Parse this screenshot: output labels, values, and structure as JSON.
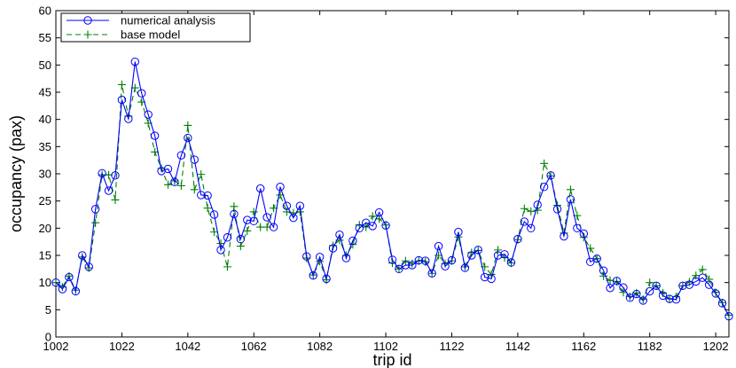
{
  "chart_data": {
    "type": "line",
    "xlabel": "trip id",
    "ylabel": "occupancy (pax)",
    "xlim": [
      1002,
      1206
    ],
    "ylim": [
      0,
      60
    ],
    "xticks": [
      1002,
      1022,
      1042,
      1062,
      1082,
      1102,
      1122,
      1142,
      1162,
      1182,
      1202
    ],
    "yticks": [
      0,
      5,
      10,
      15,
      20,
      25,
      30,
      35,
      40,
      45,
      50,
      55,
      60
    ],
    "grid": false,
    "legend_position": "top-left",
    "x_start": 1002,
    "x_step": 2,
    "series": [
      {
        "name": "numerical analysis",
        "color": "#0000ff",
        "line_style": "solid",
        "marker": "circle",
        "values": [
          10.0,
          8.8,
          11.0,
          8.4,
          15.0,
          12.9,
          23.5,
          30.1,
          26.9,
          29.7,
          43.6,
          40.1,
          50.6,
          44.8,
          40.9,
          37.0,
          30.5,
          30.9,
          28.5,
          33.4,
          36.6,
          32.6,
          26.1,
          26.0,
          22.5,
          16.0,
          18.3,
          22.6,
          18.0,
          21.5,
          21.3,
          27.3,
          22.0,
          20.2,
          27.6,
          24.1,
          21.9,
          24.1,
          14.8,
          11.3,
          14.7,
          10.7,
          16.3,
          18.8,
          14.5,
          17.7,
          20.0,
          21.0,
          20.4,
          22.9,
          20.5,
          14.2,
          12.5,
          13.2,
          13.2,
          14.1,
          14.0,
          11.7,
          16.7,
          13.0,
          14.1,
          19.3,
          12.7,
          15.0,
          16.0,
          11.0,
          10.7,
          15.0,
          15.2,
          13.7,
          18.0,
          21.2,
          20.0,
          24.3,
          27.6,
          29.7,
          23.5,
          18.5,
          25.3,
          20.0,
          19.0,
          13.8,
          14.4,
          12.2,
          9.0,
          10.3,
          9.1,
          7.2,
          7.9,
          6.7,
          8.4,
          9.4,
          7.6,
          7.0,
          6.9,
          9.4,
          9.6,
          10.2,
          10.9,
          9.6,
          8.0,
          6.2,
          3.8
        ]
      },
      {
        "name": "base model",
        "color": "#008000",
        "line_style": "dashed",
        "marker": "plus",
        "values": [
          10.0,
          9.2,
          11.2,
          8.6,
          14.7,
          12.7,
          21.0,
          29.8,
          29.8,
          25.2,
          46.4,
          40.6,
          45.8,
          43.2,
          39.3,
          34.0,
          31.0,
          28.0,
          28.7,
          27.8,
          38.9,
          27.1,
          29.9,
          23.7,
          19.3,
          17.2,
          12.9,
          24.0,
          16.7,
          19.5,
          23.0,
          20.2,
          20.2,
          23.7,
          26.1,
          23.0,
          22.8,
          23.0,
          14.5,
          11.4,
          13.9,
          10.5,
          16.8,
          17.8,
          15.0,
          17.0,
          20.6,
          20.2,
          22.2,
          21.7,
          20.6,
          13.6,
          12.5,
          14.0,
          13.5,
          14.0,
          13.8,
          11.7,
          15.0,
          13.5,
          14.0,
          18.4,
          12.9,
          15.5,
          15.9,
          12.9,
          11.5,
          16.0,
          14.6,
          13.6,
          17.9,
          23.6,
          23.1,
          23.3,
          31.9,
          29.6,
          24.2,
          19.1,
          27.1,
          22.3,
          18.3,
          16.3,
          14.4,
          11.2,
          10.4,
          10.2,
          8.2,
          7.4,
          8.1,
          6.9,
          10.0,
          9.4,
          8.1,
          7.0,
          7.4,
          9.4,
          10.1,
          11.3,
          12.4,
          10.6,
          8.2,
          6.3,
          4.0
        ]
      }
    ]
  }
}
